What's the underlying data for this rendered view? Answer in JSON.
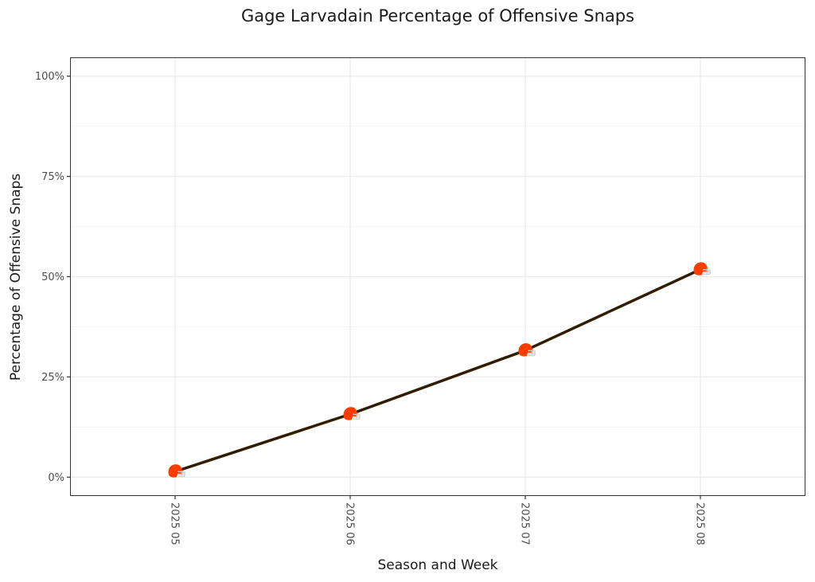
{
  "chart_data": {
    "type": "line",
    "title": "Gage Larvadain Percentage of Offensive Snaps",
    "xlabel": "Season and Week",
    "ylabel": "Percentage of Offensive Snaps",
    "categories": [
      "2025 05",
      "2025 06",
      "2025 07",
      "2025 08"
    ],
    "series": [
      {
        "name": "Gage Larvadain",
        "values": [
          1.4,
          15.7,
          31.6,
          51.8
        ],
        "unit": "%"
      }
    ],
    "ylim": [
      -4.7,
      104.7
    ],
    "yticks": [
      0,
      25,
      50,
      75,
      100
    ],
    "ytick_labels": [
      "0%",
      "25%",
      "50%",
      "75%",
      "100%"
    ],
    "grid": true,
    "legend": "none",
    "marker": "team-helmet",
    "colors": {
      "line": "#311D00",
      "helmet": "#FF3C00",
      "facemask": "#CFCFCF",
      "background": "#FFFFFF"
    }
  }
}
